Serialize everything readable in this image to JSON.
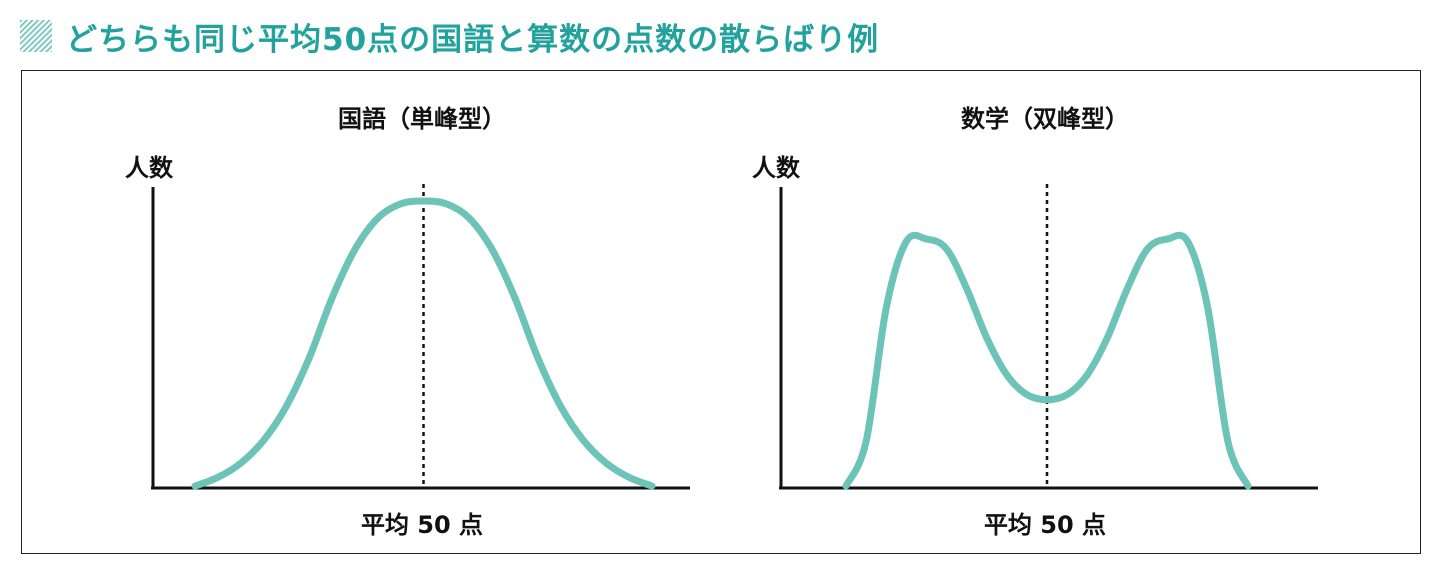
{
  "header": {
    "title": "どちらも同じ平均50点の国語と算数の点数の散らばり例",
    "accent_color": "#21a29c",
    "icon": "hatched-square-icon"
  },
  "chart_data": [
    {
      "type": "line",
      "title": "国語（単峰型）",
      "ylabel": "人数",
      "mean_label": "平均 50 点",
      "mean_x": 50,
      "xlim": [
        0,
        100
      ],
      "ylim": [
        0,
        1
      ],
      "curve_color": "#6cc3b8",
      "series": [
        {
          "x": [
            0,
            5,
            10,
            15,
            20,
            25,
            30,
            35,
            40,
            45,
            50,
            55,
            60,
            65,
            70,
            75,
            80,
            85,
            90,
            95,
            100
          ],
          "values": [
            0.0,
            0.03,
            0.08,
            0.16,
            0.28,
            0.45,
            0.66,
            0.83,
            0.94,
            0.99,
            1.0,
            0.99,
            0.94,
            0.83,
            0.66,
            0.45,
            0.28,
            0.16,
            0.08,
            0.03,
            0.0
          ]
        }
      ]
    },
    {
      "type": "line",
      "title": "数学（双峰型）",
      "ylabel": "人数",
      "mean_label": "平均 50 点",
      "mean_x": 50,
      "xlim": [
        0,
        100
      ],
      "ylim": [
        0,
        1
      ],
      "curve_color": "#6cc3b8",
      "series": [
        {
          "x": [
            0,
            5,
            10,
            15,
            20,
            25,
            30,
            35,
            40,
            45,
            50,
            55,
            60,
            65,
            70,
            75,
            80,
            85,
            90,
            95,
            100
          ],
          "values": [
            0.0,
            0.18,
            0.72,
            0.99,
            1.0,
            0.96,
            0.8,
            0.6,
            0.45,
            0.37,
            0.35,
            0.37,
            0.45,
            0.6,
            0.8,
            0.96,
            1.0,
            0.99,
            0.72,
            0.18,
            0.0
          ]
        }
      ]
    }
  ]
}
